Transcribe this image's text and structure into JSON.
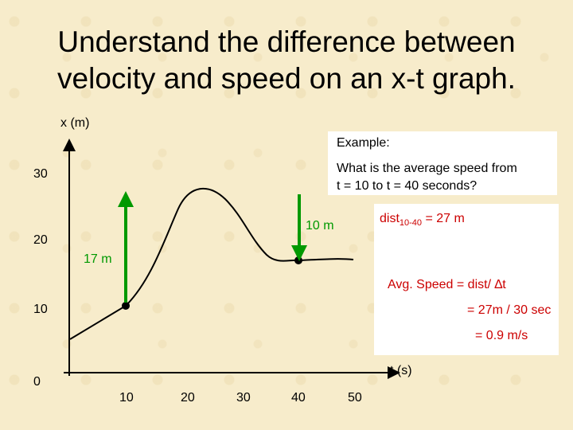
{
  "title_line1": "Understand the difference between",
  "title_line2": "velocity and speed on an x-t graph.",
  "axes": {
    "y_label": "x (m)",
    "x_label": "t (s)",
    "y_ticks": [
      "30",
      "20",
      "10",
      "0"
    ],
    "x_ticks": [
      "10",
      "20",
      "30",
      "40",
      "50"
    ]
  },
  "example": {
    "heading": "Example:",
    "question_line1": "What is the average speed from",
    "question_line2": "t = 10 to   t = 40 seconds?"
  },
  "annotations": {
    "rise_label": "17 m",
    "fall_label": "10 m",
    "dist_prefix": "dist",
    "dist_sub": "10-40",
    "dist_suffix": " = 27 m"
  },
  "solution": {
    "line1": "Avg. Speed = dist/ ∆t",
    "line2": "= 27m / 30 sec",
    "line3": "= 0.9 m/s"
  },
  "colors": {
    "arrow_green": "#009900",
    "answer_red": "#cc0000",
    "background": "#f7eccb"
  }
}
